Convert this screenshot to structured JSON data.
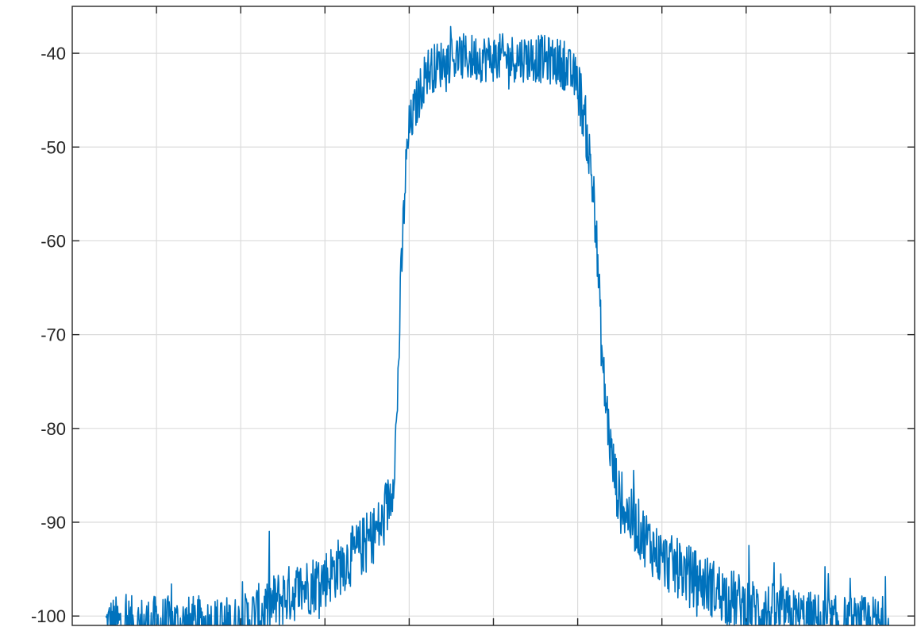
{
  "chart_data": {
    "type": "line",
    "title": "",
    "xlabel": "",
    "ylabel": "",
    "xlim": [
      0,
      1
    ],
    "ylim": [
      -101,
      -35
    ],
    "x_ticks": [
      0.1,
      0.2,
      0.3,
      0.4,
      0.5,
      0.6,
      0.7,
      0.8,
      0.9
    ],
    "x_tick_labels_visible": false,
    "y_ticks": [
      -100,
      -90,
      -80,
      -70,
      -60,
      -50,
      -40
    ],
    "y_tick_labels": [
      "-100",
      "-90",
      "-80",
      "-70",
      "-60",
      "-50",
      "-40"
    ],
    "grid": true,
    "line_color": "#0072BD",
    "series": [
      {
        "name": "",
        "envelope": {
          "x": [
            0.04,
            0.1,
            0.2,
            0.25,
            0.3,
            0.34,
            0.37,
            0.38,
            0.385,
            0.39,
            0.395,
            0.4,
            0.42,
            0.45,
            0.5,
            0.55,
            0.58,
            0.6,
            0.61,
            0.62,
            0.625,
            0.63,
            0.64,
            0.65,
            0.7,
            0.8,
            0.9,
            0.97
          ],
          "y": [
            -101,
            -101,
            -101,
            -98,
            -96,
            -93,
            -90,
            -86,
            -80,
            -65,
            -54,
            -48,
            -42,
            -40.5,
            -40.5,
            -40.5,
            -41,
            -43,
            -48,
            -56,
            -65,
            -74,
            -83,
            -88,
            -94,
            -99,
            -101,
            -101
          ]
        }
      }
    ]
  }
}
